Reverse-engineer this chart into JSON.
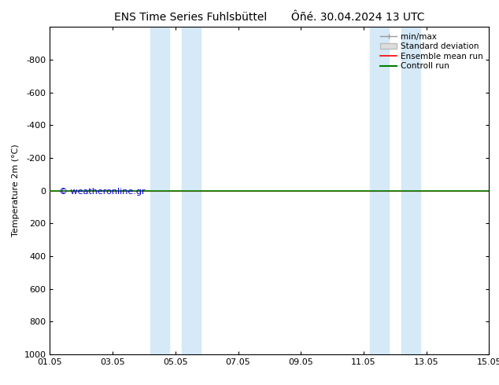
{
  "title": "ENS Time Series Fuhlsbüttel       Ôñé. 30.04.2024 13 UTC",
  "ylabel": "Temperature 2m (°C)",
  "ylim_top": -1000,
  "ylim_bottom": 1000,
  "yticks": [
    -800,
    -600,
    -400,
    -200,
    0,
    200,
    400,
    600,
    800,
    1000
  ],
  "xlim_min": 0.0,
  "xlim_max": 14.0,
  "xtick_positions": [
    0,
    2,
    4,
    6,
    8,
    10,
    12,
    14
  ],
  "xtick_labels": [
    "01.05",
    "03.05",
    "05.05",
    "07.05",
    "09.05",
    "11.05",
    "13.05",
    "15.05"
  ],
  "shade_bands": [
    {
      "xmin": 3.2,
      "xmax": 3.8
    },
    {
      "xmin": 4.2,
      "xmax": 4.8
    },
    {
      "xmin": 10.2,
      "xmax": 10.8
    },
    {
      "xmin": 11.2,
      "xmax": 11.8
    }
  ],
  "shade_color": "#d5e9f7",
  "ensemble_color": "#ff0000",
  "control_color": "#008000",
  "minmax_color": "#999999",
  "stddev_facecolor": "#dddddd",
  "stddev_edgecolor": "#bbbbbb",
  "copyright_text": "© weatheronline.gr",
  "copyright_color": "#0000cc",
  "background_color": "#ffffff",
  "plot_bg_color": "#ffffff",
  "legend_entries": [
    "min/max",
    "Standard deviation",
    "Ensemble mean run",
    "Controll run"
  ],
  "title_fontsize": 10,
  "axis_fontsize": 8,
  "tick_fontsize": 8,
  "legend_fontsize": 7.5
}
